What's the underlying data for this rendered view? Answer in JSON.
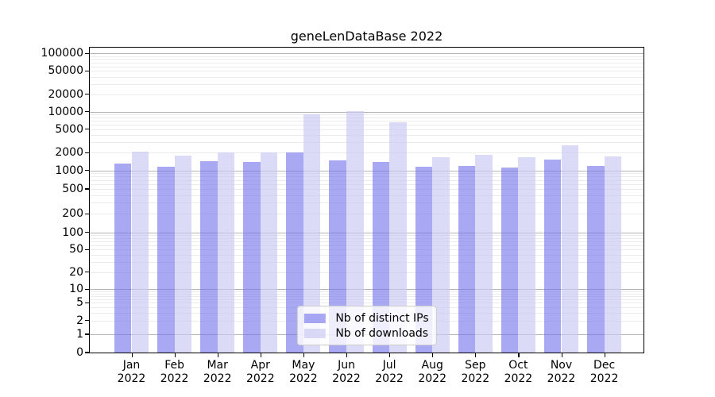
{
  "chart_data": {
    "type": "bar",
    "title": "geneLenDataBase 2022",
    "categories": [
      "Jan 2022",
      "Feb 2022",
      "Mar 2022",
      "Apr 2022",
      "May 2022",
      "Jun 2022",
      "Jul 2022",
      "Aug 2022",
      "Sep 2022",
      "Oct 2022",
      "Nov 2022",
      "Dec 2022"
    ],
    "series": [
      {
        "name": "Nb of distinct IPs",
        "color": "#a8a8f3",
        "fill": "rgba(110,110,235,0.6)",
        "values": [
          1300,
          1160,
          1450,
          1400,
          2000,
          1480,
          1400,
          1150,
          1180,
          1100,
          1520,
          1200
        ]
      },
      {
        "name": "Nb of downloads",
        "color": "#dbdbf7",
        "fill": "rgba(200,200,243,0.65)",
        "values": [
          2100,
          1800,
          2050,
          2050,
          9000,
          10300,
          6700,
          1700,
          1820,
          1670,
          2670,
          1740
        ]
      }
    ],
    "yscale": "symlog",
    "ylim": [
      0,
      125000
    ],
    "y_ticks": [
      100000,
      50000,
      20000,
      10000,
      5000,
      2000,
      1000,
      500,
      200,
      100,
      50,
      20,
      10,
      5,
      2,
      1,
      0
    ],
    "grid": true,
    "legend_position": "lower center"
  }
}
